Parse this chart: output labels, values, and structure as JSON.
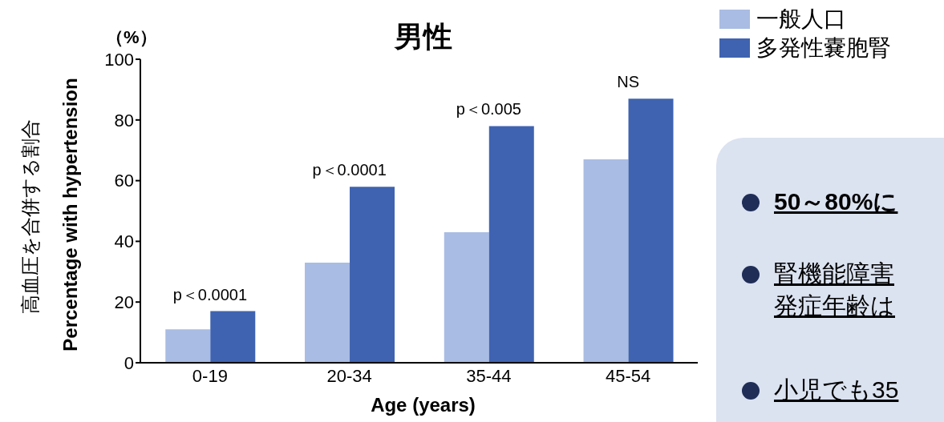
{
  "chart_data": [
    {
      "type": "bar",
      "title": "男性",
      "xlabel": "Age (years)",
      "ylabel": "高血圧を合併する割合\nPercentage with hypertension",
      "categories": [
        "0-19",
        "20-34",
        "35-44",
        "45-54"
      ],
      "series": [
        {
          "name": "一般人口",
          "color": "#a9bce3",
          "values": [
            11,
            33,
            43,
            67
          ]
        },
        {
          "name": "多発性嚢胞腎",
          "color": "#3f63b0",
          "values": [
            17,
            58,
            78,
            87
          ]
        }
      ],
      "ylim": [
        0,
        100
      ],
      "yticks": [
        0,
        20,
        40,
        60,
        80,
        100
      ],
      "legend": "top right",
      "annotations": [
        "（%）",
        {
          "text": "p＜0.0001",
          "x": "0-19",
          "y": 17
        },
        {
          "text": "p＜0.0001",
          "x": "20-34",
          "y": 58
        },
        {
          "text": "p＜0.005",
          "x": "35-44",
          "y": 78
        },
        {
          "text": "NS",
          "x": "45-54",
          "y": 87
        }
      ]
    },
    {
      "type": "other",
      "annotations": [
        "50～80%に",
        "腎機能障害",
        "発症年齢は",
        "小児でも35"
      ]
    }
  ]
}
